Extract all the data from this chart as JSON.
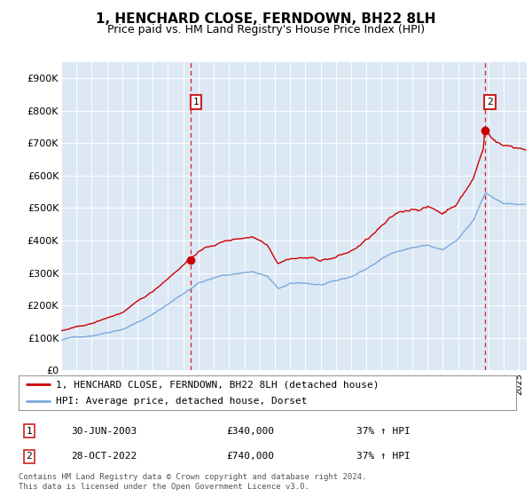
{
  "title": "1, HENCHARD CLOSE, FERNDOWN, BH22 8LH",
  "subtitle": "Price paid vs. HM Land Registry's House Price Index (HPI)",
  "ylabel_ticks": [
    "£0",
    "£100K",
    "£200K",
    "£300K",
    "£400K",
    "£500K",
    "£600K",
    "£700K",
    "£800K",
    "£900K"
  ],
  "ytick_values": [
    0,
    100000,
    200000,
    300000,
    400000,
    500000,
    600000,
    700000,
    800000,
    900000
  ],
  "ylim": [
    0,
    950000
  ],
  "plot_bg": "#dde8f5",
  "red_line_color": "#cc0000",
  "blue_line_color": "#7aaadd",
  "sale1_year_idx": 102,
  "sale1_price": 340000,
  "sale2_year_idx": 327,
  "sale2_price": 740000,
  "legend_label_red": "1, HENCHARD CLOSE, FERNDOWN, BH22 8LH (detached house)",
  "legend_label_blue": "HPI: Average price, detached house, Dorset",
  "table_row1": [
    "1",
    "30-JUN-2003",
    "£340,000",
    "37% ↑ HPI"
  ],
  "table_row2": [
    "2",
    "28-OCT-2022",
    "£740,000",
    "37% ↑ HPI"
  ],
  "footnote1": "Contains HM Land Registry data © Crown copyright and database right 2024.",
  "footnote2": "This data is licensed under the Open Government Licence v3.0.",
  "xmin": 1995.0,
  "xmax": 2025.5
}
